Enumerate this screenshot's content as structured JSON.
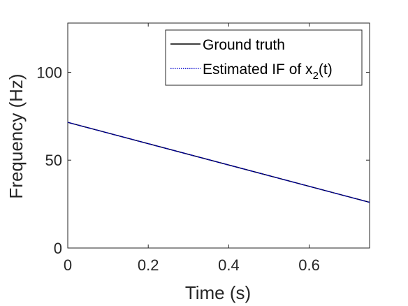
{
  "chart_data": {
    "type": "line",
    "xlabel": "Time (s)",
    "ylabel": "Frequency (Hz)",
    "xlim": [
      0,
      0.75
    ],
    "ylim": [
      0,
      128
    ],
    "xticks": [
      0,
      0.2,
      0.4,
      0.6
    ],
    "xtick_labels": [
      "0",
      "0.2",
      "0.4",
      "0.6"
    ],
    "yticks": [
      0,
      50,
      100
    ],
    "ytick_labels": [
      "0",
      "50",
      "100"
    ],
    "grid": false,
    "legend_position": "top-right",
    "series": [
      {
        "name": "Ground truth",
        "color": "#000000",
        "style": "solid",
        "x": [
          0,
          0.75
        ],
        "y": [
          71.5,
          26
        ]
      },
      {
        "name": "Estimated IF of x",
        "name_subscript": "2",
        "name_suffix": "(t)",
        "color": "#0000cc",
        "style": "dotted",
        "x": [
          0,
          0.75
        ],
        "y": [
          71.5,
          26
        ]
      }
    ]
  }
}
